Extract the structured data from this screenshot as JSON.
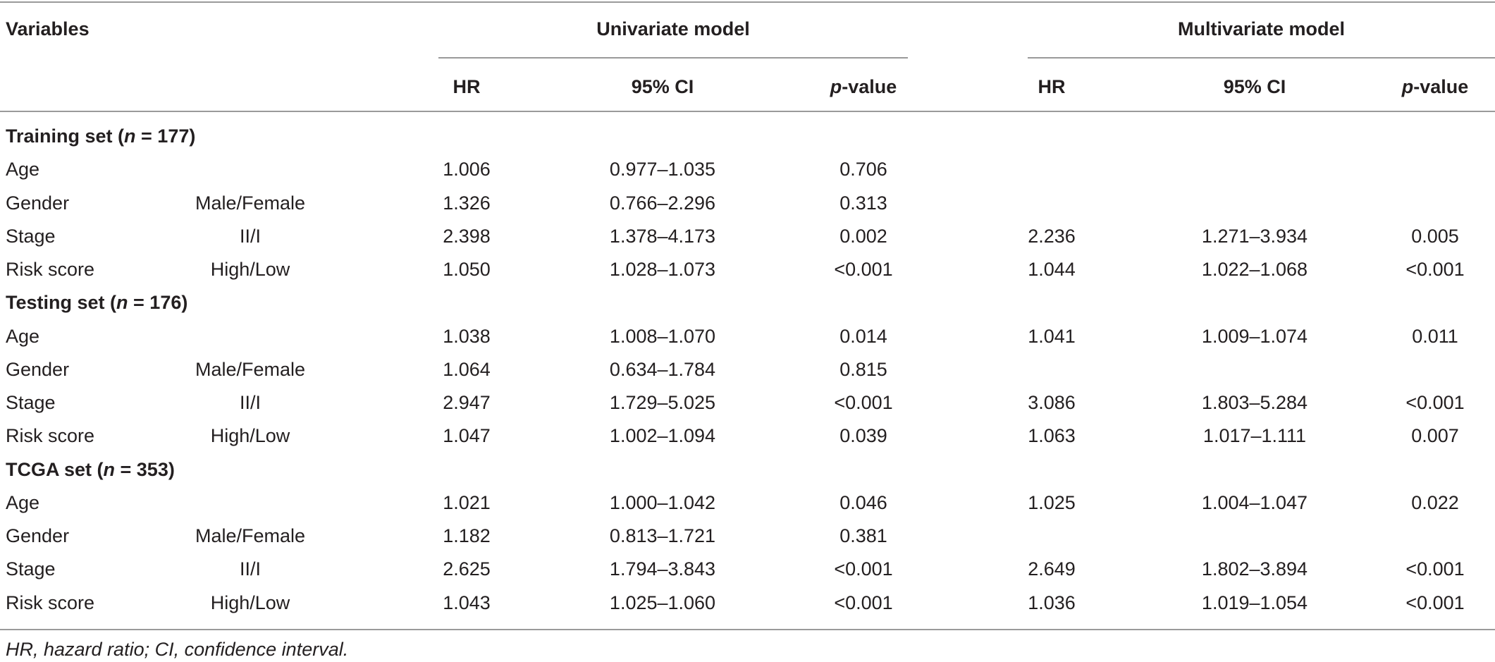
{
  "headers": {
    "variables": "Variables",
    "univariate": "Univariate model",
    "multivariate": "Multivariate model",
    "hr": "HR",
    "ci": "95% CI",
    "p_italic": "p",
    "p_rest": "-value"
  },
  "groups": [
    {
      "title_prefix": "Training set (",
      "title_n": "n",
      "title_suffix": " = 177)",
      "rows": [
        {
          "variable": "Age",
          "category": "",
          "u_hr": "1.006",
          "u_ci": "0.977–1.035",
          "u_p": "0.706",
          "m_hr": "",
          "m_ci": "",
          "m_p": ""
        },
        {
          "variable": "Gender",
          "category": "Male/Female",
          "u_hr": "1.326",
          "u_ci": "0.766–2.296",
          "u_p": "0.313",
          "m_hr": "",
          "m_ci": "",
          "m_p": ""
        },
        {
          "variable": "Stage",
          "category": "II/I",
          "u_hr": "2.398",
          "u_ci": "1.378–4.173",
          "u_p": "0.002",
          "m_hr": "2.236",
          "m_ci": "1.271–3.934",
          "m_p": "0.005"
        },
        {
          "variable": "Risk score",
          "category": "High/Low",
          "u_hr": "1.050",
          "u_ci": "1.028–1.073",
          "u_p": "<0.001",
          "m_hr": "1.044",
          "m_ci": "1.022–1.068",
          "m_p": "<0.001"
        }
      ]
    },
    {
      "title_prefix": "Testing set (",
      "title_n": "n",
      "title_suffix": " = 176)",
      "rows": [
        {
          "variable": "Age",
          "category": "",
          "u_hr": "1.038",
          "u_ci": "1.008–1.070",
          "u_p": "0.014",
          "m_hr": "1.041",
          "m_ci": "1.009–1.074",
          "m_p": "0.011"
        },
        {
          "variable": "Gender",
          "category": "Male/Female",
          "u_hr": "1.064",
          "u_ci": "0.634–1.784",
          "u_p": "0.815",
          "m_hr": "",
          "m_ci": "",
          "m_p": ""
        },
        {
          "variable": "Stage",
          "category": "II/I",
          "u_hr": "2.947",
          "u_ci": "1.729–5.025",
          "u_p": "<0.001",
          "m_hr": "3.086",
          "m_ci": "1.803–5.284",
          "m_p": "<0.001"
        },
        {
          "variable": "Risk score",
          "category": "High/Low",
          "u_hr": "1.047",
          "u_ci": "1.002–1.094",
          "u_p": "0.039",
          "m_hr": "1.063",
          "m_ci": "1.017–1.111",
          "m_p": "0.007"
        }
      ]
    },
    {
      "title_prefix": "TCGA set (",
      "title_n": "n",
      "title_suffix": " = 353)",
      "rows": [
        {
          "variable": "Age",
          "category": "",
          "u_hr": "1.021",
          "u_ci": "1.000–1.042",
          "u_p": "0.046",
          "m_hr": "1.025",
          "m_ci": "1.004–1.047",
          "m_p": "0.022"
        },
        {
          "variable": "Gender",
          "category": "Male/Female",
          "u_hr": "1.182",
          "u_ci": "0.813–1.721",
          "u_p": "0.381",
          "m_hr": "",
          "m_ci": "",
          "m_p": ""
        },
        {
          "variable": "Stage",
          "category": "II/I",
          "u_hr": "2.625",
          "u_ci": "1.794–3.843",
          "u_p": "<0.001",
          "m_hr": "2.649",
          "m_ci": "1.802–3.894",
          "m_p": "<0.001"
        },
        {
          "variable": "Risk score",
          "category": "High/Low",
          "u_hr": "1.043",
          "u_ci": "1.025–1.060",
          "u_p": "<0.001",
          "m_hr": "1.036",
          "m_ci": "1.019–1.054",
          "m_p": "<0.001"
        }
      ]
    }
  ],
  "footnote": "HR, hazard ratio; CI, confidence interval."
}
